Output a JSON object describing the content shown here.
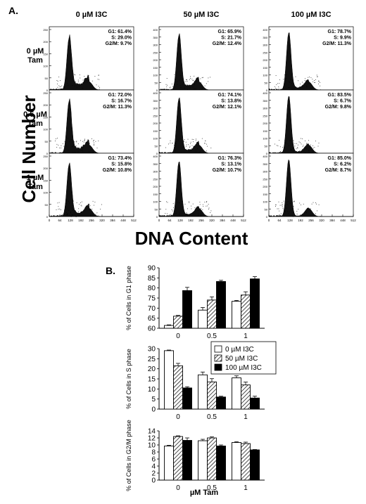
{
  "panel_a": {
    "label": "A.",
    "columns": [
      "0 µM I3C",
      "50 µM I3C",
      "100 µM I3C"
    ],
    "rows": [
      [
        "0 µM",
        "Tam"
      ],
      [
        "0.5 µM",
        "Tam"
      ],
      [
        "1 µM",
        "Tam"
      ]
    ],
    "y_axis_title": "Cell Number",
    "x_axis_title": "DNA Content",
    "x_ticks": [
      "0",
      "64",
      "128",
      "192",
      "256",
      "320",
      "384",
      "448",
      "512"
    ],
    "y_ticks": [
      [
        "0",
        "50",
        "100",
        "150",
        "200",
        "250"
      ],
      [
        "0",
        "50",
        "100",
        "150",
        "200",
        "250",
        "300",
        "350",
        "400"
      ],
      [
        "0",
        "50",
        "100",
        "150",
        "200",
        "250",
        "300",
        "350",
        "400"
      ]
    ],
    "stats": [
      [
        [
          "G1: 61.4%",
          "S: 29.0%",
          "G2/M: 9.7%"
        ],
        [
          "G1: 65.9%",
          "S: 21.7%",
          "G2/M: 12.4%"
        ],
        [
          "G1: 78.7%",
          "S: 9.9%",
          "G2/M: 11.3%"
        ]
      ],
      [
        [
          "G1: 72.0%",
          "S: 16.7%",
          "G2/M: 11.3%"
        ],
        [
          "G1: 74.1%",
          "S: 13.8%",
          "G2/M: 12.1%"
        ],
        [
          "G1: 83.5%",
          "S: 6.7%",
          "G2/M: 9.8%"
        ]
      ],
      [
        [
          "G1: 73.4%",
          "S: 15.8%",
          "G2/M: 10.8%"
        ],
        [
          "G1: 76.3%",
          "S: 13.1%",
          "G2/M: 10.7%"
        ],
        [
          "G1: 85.0%",
          "S: 6.2%",
          "G2/M: 8.7%"
        ]
      ]
    ]
  },
  "panel_b": {
    "label": "B.",
    "x_label": "µM Tam",
    "legend": [
      "0 µM I3C",
      "50 µM I3C",
      "100 µM I3C"
    ]
  },
  "chart_data": [
    {
      "type": "bar",
      "ylabel": "% of Cells in G1 phase",
      "categories": [
        "0",
        "0.5",
        "1"
      ],
      "ylim": [
        60,
        90
      ],
      "yticks": [
        60,
        65,
        70,
        75,
        80,
        85,
        90
      ],
      "series": [
        {
          "name": "0 µM I3C",
          "values": [
            61.4,
            69.0,
            73.4
          ],
          "errors": [
            0.3,
            1.3,
            0.4
          ]
        },
        {
          "name": "50 µM I3C",
          "values": [
            66.0,
            74.0,
            76.5
          ],
          "errors": [
            0.4,
            1.6,
            1.6
          ]
        },
        {
          "name": "100 µM I3C",
          "values": [
            78.7,
            83.2,
            84.5
          ],
          "errors": [
            1.6,
            0.6,
            1.1
          ]
        }
      ]
    },
    {
      "type": "bar",
      "ylabel": "% of Cells in S phase",
      "categories": [
        "0",
        "0.5",
        "1"
      ],
      "ylim": [
        0,
        30
      ],
      "yticks": [
        0,
        5,
        10,
        15,
        20,
        25,
        30
      ],
      "series": [
        {
          "name": "0 µM I3C",
          "values": [
            29.0,
            17.0,
            15.5
          ],
          "errors": [
            0.3,
            1.4,
            1.0
          ]
        },
        {
          "name": "50 µM I3C",
          "values": [
            21.5,
            13.5,
            12.0
          ],
          "errors": [
            1.2,
            1.6,
            1.4
          ]
        },
        {
          "name": "100 µM I3C",
          "values": [
            10.5,
            6.0,
            5.5
          ],
          "errors": [
            0.6,
            0.4,
            0.9
          ]
        }
      ]
    },
    {
      "type": "bar",
      "ylabel": "% of Cells in G2/M phase",
      "categories": [
        "0",
        "0.5",
        "1"
      ],
      "ylim": [
        0,
        14
      ],
      "yticks": [
        0,
        2,
        4,
        6,
        8,
        10,
        12,
        14
      ],
      "series": [
        {
          "name": "0 µM I3C",
          "values": [
            9.7,
            11.2,
            10.7
          ],
          "errors": [
            0.2,
            0.4,
            0.2
          ]
        },
        {
          "name": "50 µM I3C",
          "values": [
            12.4,
            12.0,
            10.4
          ],
          "errors": [
            0.2,
            0.3,
            0.4
          ]
        },
        {
          "name": "100 µM I3C",
          "values": [
            11.3,
            9.7,
            8.6
          ],
          "errors": [
            0.7,
            0.3,
            0.1
          ]
        }
      ]
    }
  ]
}
